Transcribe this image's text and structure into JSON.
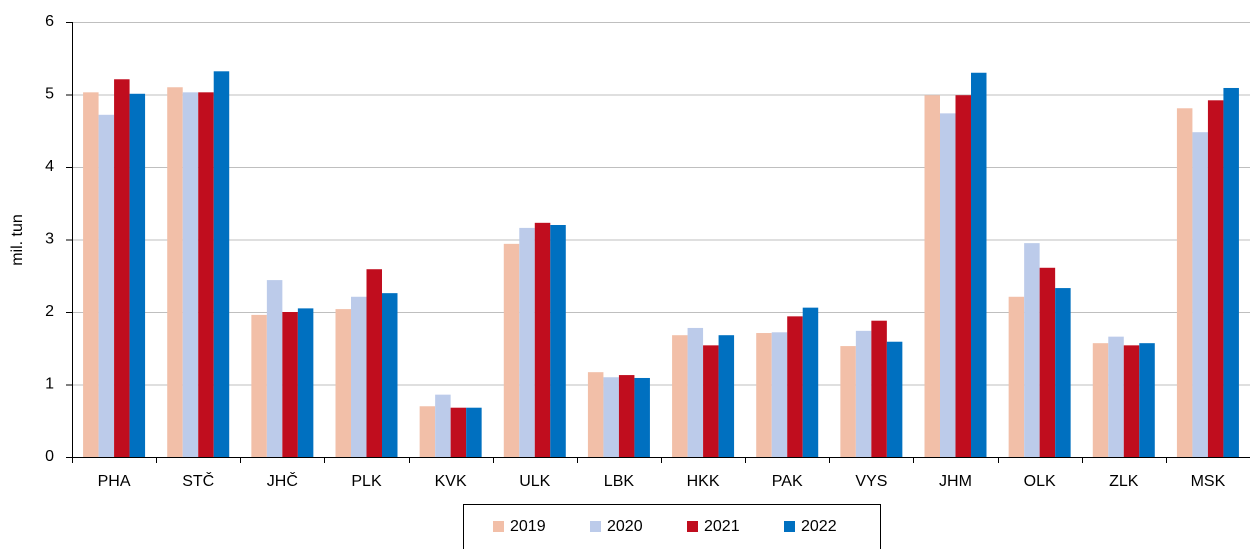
{
  "chart_data": {
    "type": "bar",
    "y_label": "mil. tun",
    "categories": [
      "PHA",
      "STČ",
      "JHČ",
      "PLK",
      "KVK",
      "ULK",
      "LBK",
      "HKK",
      "PAK",
      "VYS",
      "JHM",
      "OLK",
      "ZLK",
      "MSK"
    ],
    "series": [
      {
        "name": "2019",
        "color": "#f2bfa8",
        "values": [
          5.03,
          5.1,
          1.96,
          2.04,
          0.7,
          2.94,
          1.17,
          1.68,
          1.71,
          1.53,
          4.99,
          2.21,
          1.57,
          4.81
        ]
      },
      {
        "name": "2020",
        "color": "#bccbea",
        "values": [
          4.72,
          5.03,
          2.44,
          2.21,
          0.86,
          3.16,
          1.1,
          1.78,
          1.72,
          1.74,
          4.74,
          2.95,
          1.66,
          4.48
        ]
      },
      {
        "name": "2021",
        "color": "#c00d1e",
        "values": [
          5.21,
          5.03,
          2.0,
          2.59,
          0.68,
          3.23,
          1.13,
          1.54,
          1.94,
          1.88,
          4.99,
          2.61,
          1.54,
          4.92
        ]
      },
      {
        "name": "2022",
        "color": "#0070c0",
        "values": [
          5.01,
          5.32,
          2.05,
          2.26,
          0.68,
          3.2,
          1.09,
          1.68,
          2.06,
          1.59,
          5.3,
          2.33,
          1.57,
          5.09
        ]
      }
    ],
    "ylim": [
      0,
      6
    ],
    "yticks": [
      0,
      1,
      2,
      3,
      4,
      5,
      6
    ],
    "grid": true,
    "legend": "bottom"
  }
}
